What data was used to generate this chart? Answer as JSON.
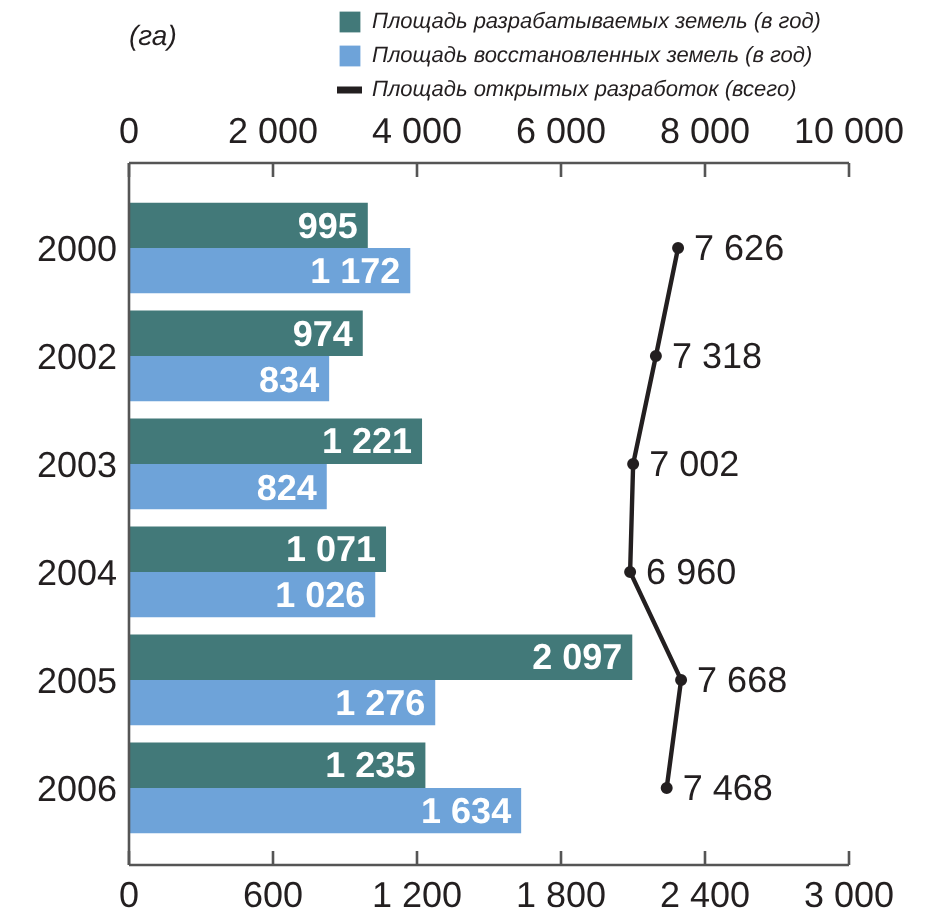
{
  "chart_data": {
    "type": "bar",
    "orientation": "horizontal",
    "annotations": [
      "(га)"
    ],
    "categories": [
      "2000",
      "2002",
      "2003",
      "2004",
      "2005",
      "2006"
    ],
    "series": [
      {
        "name": "Площадь разрабатываемых земель (в год)",
        "color": "#427979",
        "values": [
          995,
          974,
          1221,
          1071,
          2097,
          1235
        ],
        "value_labels": [
          "995",
          "974",
          "1 221",
          "1 071",
          "2 097",
          "1 235"
        ]
      },
      {
        "name": "Площадь восстановленных земель (в год)",
        "color": "#6ea3d9",
        "values": [
          1172,
          834,
          824,
          1026,
          1276,
          1634
        ],
        "value_labels": [
          "1 172",
          "834",
          "824",
          "1 026",
          "1 276",
          "1 634"
        ]
      },
      {
        "name": "Площадь открытых разработок (всего)",
        "type": "line",
        "axis": "x2",
        "color": "#231f20",
        "marker": "circle",
        "values": [
          7626,
          7318,
          7002,
          6960,
          7668,
          7468
        ],
        "value_labels": [
          "7 626",
          "7 318",
          "7 002",
          "6 960",
          "7 668",
          "7 468"
        ]
      }
    ],
    "xlim": [
      0,
      3000
    ],
    "xticks": [
      0,
      600,
      {
        "value": 1200,
        "label": "1 200"
      },
      {
        "value": 1800,
        "label": "1 800"
      },
      {
        "value": 2400,
        "label": "2 400"
      },
      {
        "value": 3000,
        "label": "3 000"
      }
    ],
    "x2lim": [
      0,
      10000
    ],
    "x2ticks": [
      0,
      {
        "value": 2000,
        "label": "2 000"
      },
      {
        "value": 4000,
        "label": "4 000"
      },
      {
        "value": 6000,
        "label": "6 000"
      },
      {
        "value": 8000,
        "label": "8 000"
      },
      {
        "value": 10000,
        "label": "10 000"
      }
    ],
    "grid": false,
    "legend": "top right"
  }
}
